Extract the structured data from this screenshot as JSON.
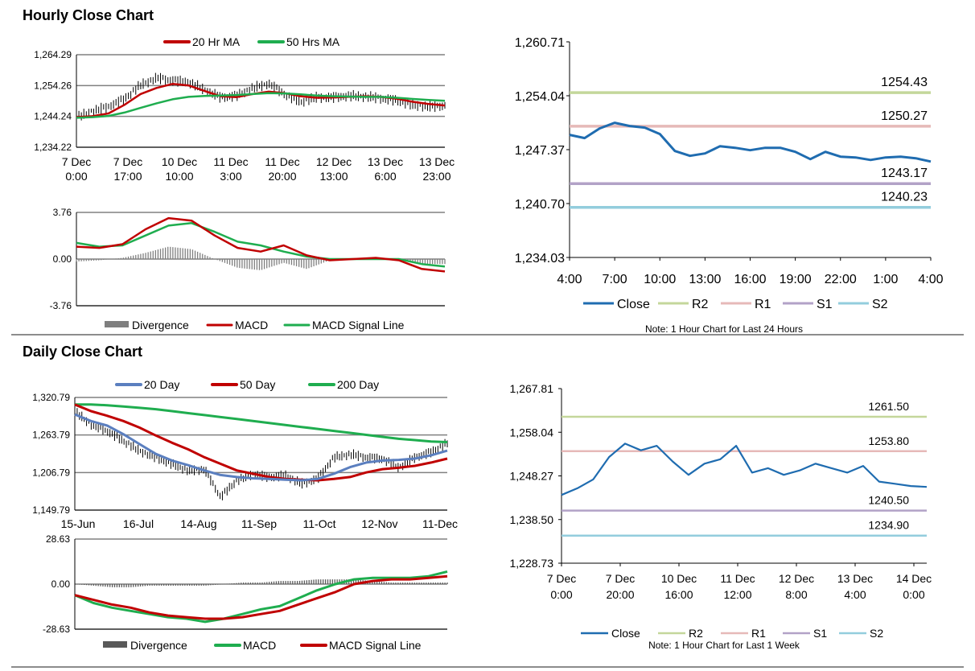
{
  "hourly": {
    "title": "Hourly Close Chart",
    "colors": {
      "ma20": "#c00000",
      "ma50": "#1fad4f",
      "price": "#000000",
      "grid": "#808080",
      "divergence": "#7f7f7f",
      "macd": "#c00000",
      "signal": "#1fad4f"
    },
    "note": "Note: 1 Hour Chart for Last 24 Hours"
  },
  "daily": {
    "title": "Daily Close Chart",
    "colors": {
      "ma20": "#5b7fbf",
      "ma50": "#c00000",
      "ma200": "#1fad4f",
      "price": "#000000",
      "grid": "#808080",
      "divergence": "#595959",
      "macd": "#1fad4f",
      "signal": "#c00000"
    },
    "note": "Note: 1 Hour Chart for Last 1 Week"
  },
  "level_colors": {
    "close": "#1f6cb0",
    "r2": "#c4d79b",
    "r1": "#e6b9b8",
    "s1": "#b2a2c7",
    "s2": "#93cddd"
  },
  "chart_data": [
    {
      "id": "hourly_price",
      "type": "line",
      "title": "Hourly Close Chart",
      "ylim": [
        1234.22,
        1264.29
      ],
      "yticks": [
        "1,264.29",
        "1,254.26",
        "1,244.24",
        "1,234.22"
      ],
      "xticks": [
        [
          "7 Dec",
          "0:00"
        ],
        [
          "7 Dec",
          "17:00"
        ],
        [
          "10 Dec",
          "10:00"
        ],
        [
          "11 Dec",
          "3:00"
        ],
        [
          "11 Dec",
          "20:00"
        ],
        [
          "12 Dec",
          "13:00"
        ],
        [
          "13 Dec",
          "6:00"
        ],
        [
          "13 Dec",
          "23:00"
        ]
      ],
      "legend": [
        "20 Hr MA",
        "50 Hrs MA"
      ],
      "series": [
        {
          "name": "Close",
          "values": [
            1244.0,
            1246.0,
            1247.5,
            1250.0,
            1254.5,
            1256.8,
            1256.0,
            1255.5,
            1253.0,
            1250.5,
            1251.0,
            1253.5,
            1255.0,
            1251.5,
            1249.0,
            1250.5,
            1250.5,
            1251.0,
            1250.8,
            1250.2,
            1249.5,
            1248.0,
            1247.5,
            1247.8
          ]
        },
        {
          "name": "20 Hr MA",
          "values": [
            1244.0,
            1244.3,
            1245.2,
            1248.0,
            1251.5,
            1253.5,
            1254.8,
            1254.3,
            1252.5,
            1250.8,
            1250.5,
            1251.5,
            1252.3,
            1251.8,
            1250.8,
            1250.3,
            1250.4,
            1250.6,
            1250.8,
            1250.6,
            1250.0,
            1249.0,
            1248.3,
            1247.8
          ]
        },
        {
          "name": "50 Hrs MA",
          "values": [
            1243.8,
            1244.0,
            1244.4,
            1245.5,
            1247.0,
            1248.5,
            1249.8,
            1250.6,
            1250.9,
            1251.0,
            1251.2,
            1251.5,
            1251.8,
            1251.7,
            1251.4,
            1251.0,
            1250.8,
            1250.7,
            1250.6,
            1250.6,
            1250.3,
            1249.9,
            1249.6,
            1249.3
          ]
        }
      ]
    },
    {
      "id": "hourly_macd",
      "type": "line",
      "ylim": [
        -3.76,
        3.76
      ],
      "yticks": [
        "3.76",
        "0.00",
        "-3.76"
      ],
      "legend": [
        "Divergence",
        "MACD",
        "MACD Signal Line"
      ],
      "series": [
        {
          "name": "MACD",
          "values": [
            1.0,
            0.9,
            1.2,
            2.4,
            3.3,
            3.1,
            1.9,
            0.9,
            0.6,
            1.1,
            0.3,
            -0.1,
            0.0,
            0.1,
            -0.1,
            -0.8,
            -1.0
          ]
        },
        {
          "name": "MACD Signal Line",
          "values": [
            1.3,
            1.0,
            1.1,
            1.9,
            2.7,
            2.9,
            2.2,
            1.4,
            1.1,
            0.6,
            0.2,
            0.0,
            0.0,
            0.0,
            0.0,
            -0.4,
            -0.6
          ]
        },
        {
          "name": "Divergence",
          "values": [
            -0.2,
            -0.1,
            0.1,
            0.5,
            1.0,
            0.8,
            0.0,
            -0.7,
            -0.9,
            -0.3,
            -0.8,
            -0.1,
            0.0,
            0.1,
            -0.1,
            -0.4,
            -0.4
          ]
        }
      ]
    },
    {
      "id": "hourly_levels",
      "type": "line",
      "ylim": [
        1234.03,
        1260.71
      ],
      "yticks": [
        "1,260.71",
        "1,254.04",
        "1,247.37",
        "1,240.70",
        "1,234.03"
      ],
      "xticks": [
        "4:00",
        "7:00",
        "10:00",
        "13:00",
        "16:00",
        "19:00",
        "22:00",
        "1:00",
        "4:00"
      ],
      "legend": [
        "Close",
        "R2",
        "R1",
        "S1",
        "S2"
      ],
      "levels": {
        "R2": 1254.43,
        "R1": 1250.27,
        "S1": 1243.17,
        "S2": 1240.23
      },
      "level_labels": {
        "R2": "1254.43",
        "R1": "1250.27",
        "S1": "1243.17",
        "S2": "1240.23"
      },
      "series": [
        {
          "name": "Close",
          "values": [
            1249.2,
            1248.8,
            1250.0,
            1250.7,
            1250.3,
            1250.1,
            1249.3,
            1247.2,
            1246.6,
            1246.9,
            1247.8,
            1247.6,
            1247.3,
            1247.6,
            1247.6,
            1247.1,
            1246.2,
            1247.1,
            1246.5,
            1246.4,
            1246.1,
            1246.4,
            1246.5,
            1246.3,
            1245.9
          ]
        }
      ]
    },
    {
      "id": "daily_price",
      "type": "line",
      "title": "Daily Close Chart",
      "ylim": [
        1149.79,
        1320.79
      ],
      "yticks": [
        "1,320.79",
        "1,263.79",
        "1,206.79",
        "1,149.79"
      ],
      "xticks": [
        "15-Jun",
        "16-Jul",
        "14-Aug",
        "11-Sep",
        "11-Oct",
        "12-Nov",
        "11-Dec"
      ],
      "legend": [
        "20 Day",
        "50 Day",
        "200 Day"
      ],
      "series": [
        {
          "name": "Close",
          "values": [
            1300,
            1280,
            1270,
            1255,
            1240,
            1230,
            1220,
            1210,
            1212,
            1170,
            1195,
            1205,
            1200,
            1203,
            1190,
            1198,
            1230,
            1235,
            1230,
            1228,
            1215,
            1230,
            1238,
            1252
          ]
        },
        {
          "name": "20 Day",
          "values": [
            1295,
            1285,
            1278,
            1265,
            1250,
            1235,
            1225,
            1218,
            1210,
            1203,
            1200,
            1198,
            1197,
            1196,
            1195,
            1197,
            1205,
            1215,
            1222,
            1225,
            1226,
            1228,
            1233,
            1240
          ]
        },
        {
          "name": "50 Day",
          "values": [
            1310,
            1300,
            1293,
            1285,
            1275,
            1263,
            1252,
            1242,
            1230,
            1220,
            1210,
            1205,
            1200,
            1197,
            1196,
            1195,
            1197,
            1200,
            1207,
            1212,
            1214,
            1217,
            1222,
            1228
          ]
        },
        {
          "name": "200 Day",
          "values": [
            1310,
            1310,
            1309,
            1307,
            1305,
            1303,
            1300,
            1297,
            1294,
            1291,
            1288,
            1285,
            1282,
            1279,
            1276,
            1273,
            1270,
            1267,
            1264,
            1261,
            1258,
            1256,
            1254,
            1253
          ]
        }
      ]
    },
    {
      "id": "daily_macd",
      "type": "line",
      "ylim": [
        -28.63,
        28.63
      ],
      "yticks": [
        "28.63",
        "0.00",
        "-28.63"
      ],
      "legend": [
        "Divergence",
        "MACD",
        "MACD Signal Line"
      ],
      "series": [
        {
          "name": "MACD",
          "values": [
            -7,
            -12,
            -15,
            -17,
            -19,
            -21,
            -22,
            -24,
            -22,
            -19,
            -16,
            -14,
            -9,
            -4,
            0,
            3,
            4,
            4,
            4,
            5,
            8
          ]
        },
        {
          "name": "MACD Signal Line",
          "values": [
            -7,
            -10,
            -13,
            -15,
            -18,
            -20,
            -21,
            -22,
            -22,
            -21,
            -19,
            -17,
            -13,
            -9,
            -5,
            0,
            2,
            3,
            3,
            4,
            5
          ]
        },
        {
          "name": "Divergence",
          "values": [
            0,
            -1,
            -2,
            -2,
            -1,
            -1,
            -1,
            -1,
            0,
            1,
            1,
            2,
            2,
            3,
            3,
            3,
            2,
            1,
            1,
            1,
            1
          ]
        }
      ]
    },
    {
      "id": "daily_levels",
      "type": "line",
      "ylim": [
        1228.73,
        1267.81
      ],
      "yticks": [
        "1,267.81",
        "1,258.04",
        "1,248.27",
        "1,238.50",
        "1,228.73"
      ],
      "xticks": [
        [
          "7 Dec",
          "0:00"
        ],
        [
          "7 Dec",
          "20:00"
        ],
        [
          "10 Dec",
          "16:00"
        ],
        [
          "11 Dec",
          "12:00"
        ],
        [
          "12 Dec",
          "8:00"
        ],
        [
          "13 Dec",
          "4:00"
        ],
        [
          "14 Dec",
          "0:00"
        ]
      ],
      "legend": [
        "Close",
        "R2",
        "R1",
        "S1",
        "S2"
      ],
      "levels": {
        "R2": 1261.5,
        "R1": 1253.8,
        "S1": 1240.5,
        "S2": 1234.9
      },
      "level_labels": {
        "R2": "1261.50",
        "R1": "1253.80",
        "S1": "1240.50",
        "S2": "1234.90"
      },
      "series": [
        {
          "name": "Close",
          "values": [
            1244.0,
            1245.5,
            1247.5,
            1252.5,
            1255.5,
            1254.0,
            1255.0,
            1251.5,
            1248.5,
            1251.0,
            1252.0,
            1255.0,
            1249.0,
            1250.0,
            1248.5,
            1249.5,
            1251.0,
            1250.0,
            1249.0,
            1250.5,
            1247.0,
            1246.5,
            1246.0,
            1245.8
          ]
        }
      ]
    }
  ]
}
